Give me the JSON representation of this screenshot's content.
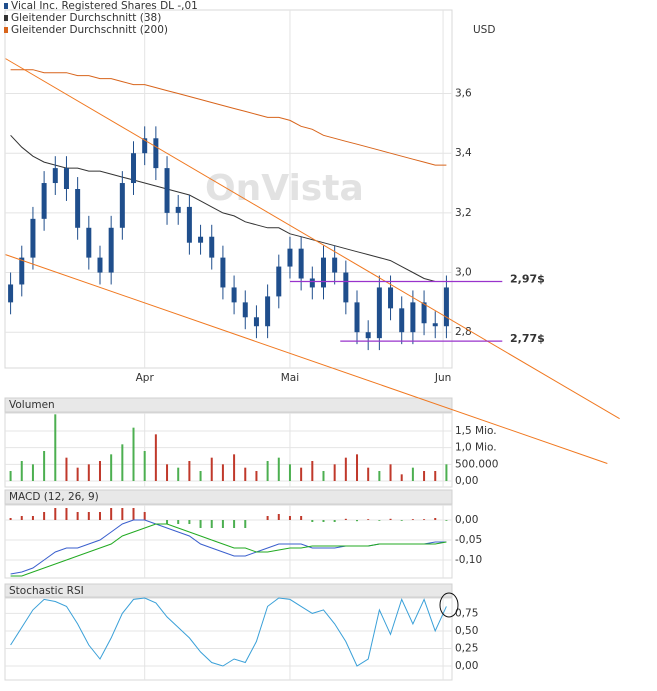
{
  "chart_data": [
    {
      "type": "candlestick",
      "currency": "USD",
      "watermark": "OnVista",
      "xlim": [
        -0.5,
        39.5
      ],
      "xticks": [
        {
          "value": 12,
          "label": "Apr"
        },
        {
          "value": 25,
          "label": "Mai"
        },
        {
          "value": 38.7,
          "label": "Jun"
        }
      ],
      "ylim": [
        2.68,
        3.88
      ],
      "yticks": [
        {
          "value": 2.8,
          "label": "2,8"
        },
        {
          "value": 3.0,
          "label": "3,0"
        },
        {
          "value": 3.2,
          "label": "3,2"
        },
        {
          "value": 3.4,
          "label": "3,4"
        },
        {
          "value": 3.6,
          "label": "3,6"
        }
      ],
      "grid": true,
      "series": [
        {
          "name": "Vical Inc. Registered Shares DL -,01",
          "color": "#1f4e8c",
          "open": [
            2.9,
            2.96,
            3.05,
            3.18,
            3.3,
            3.35,
            3.28,
            3.15,
            3.05,
            3.0,
            3.15,
            3.3,
            3.4,
            3.45,
            3.35,
            3.2,
            3.22,
            3.1,
            3.12,
            3.05,
            2.95,
            2.9,
            2.85,
            2.82,
            2.92,
            3.02,
            3.08,
            2.98,
            2.95,
            3.05,
            3.0,
            2.9,
            2.8,
            2.78,
            2.95,
            2.88,
            2.8,
            2.9,
            2.83,
            2.82
          ],
          "high": [
            3.0,
            3.09,
            3.22,
            3.34,
            3.39,
            3.39,
            3.32,
            3.19,
            3.09,
            3.19,
            3.34,
            3.44,
            3.49,
            3.49,
            3.39,
            3.26,
            3.26,
            3.16,
            3.16,
            3.09,
            2.99,
            2.94,
            2.89,
            2.96,
            3.06,
            3.12,
            3.12,
            3.02,
            3.09,
            3.09,
            3.04,
            2.94,
            2.84,
            2.99,
            2.99,
            2.92,
            2.94,
            2.94,
            2.87,
            2.99
          ],
          "low": [
            2.86,
            2.92,
            3.01,
            3.14,
            3.26,
            3.24,
            3.11,
            3.01,
            2.96,
            2.96,
            3.11,
            3.26,
            3.36,
            3.31,
            3.16,
            3.16,
            3.06,
            3.06,
            3.01,
            2.91,
            2.86,
            2.81,
            2.78,
            2.78,
            2.88,
            2.98,
            2.94,
            2.91,
            2.91,
            2.96,
            2.86,
            2.76,
            2.74,
            2.74,
            2.84,
            2.76,
            2.76,
            2.79,
            2.78,
            2.78
          ],
          "close": [
            2.96,
            3.05,
            3.18,
            3.3,
            3.35,
            3.28,
            3.15,
            3.05,
            3.0,
            3.15,
            3.3,
            3.4,
            3.45,
            3.35,
            3.2,
            3.22,
            3.1,
            3.12,
            3.05,
            2.95,
            2.9,
            2.85,
            2.82,
            2.92,
            3.02,
            3.08,
            2.98,
            2.95,
            3.05,
            3.0,
            2.9,
            2.8,
            2.78,
            2.95,
            2.88,
            2.8,
            2.9,
            2.83,
            2.82,
            2.95
          ]
        },
        {
          "name": "Gleitender Durchschnitt (38)",
          "color": "#333333",
          "values": [
            3.46,
            3.42,
            3.39,
            3.37,
            3.36,
            3.35,
            3.35,
            3.34,
            3.34,
            3.33,
            3.32,
            3.31,
            3.3,
            3.29,
            3.28,
            3.27,
            3.26,
            3.24,
            3.22,
            3.2,
            3.19,
            3.17,
            3.16,
            3.15,
            3.15,
            3.13,
            3.12,
            3.11,
            3.1,
            3.09,
            3.08,
            3.07,
            3.06,
            3.05,
            3.04,
            3.02,
            3.0,
            2.98,
            2.97,
            2.97
          ]
        },
        {
          "name": "Gleitender Durchschnitt (200)",
          "color": "#d8641b",
          "values": [
            3.68,
            3.68,
            3.68,
            3.67,
            3.67,
            3.67,
            3.66,
            3.66,
            3.65,
            3.65,
            3.64,
            3.63,
            3.63,
            3.62,
            3.61,
            3.6,
            3.59,
            3.58,
            3.57,
            3.56,
            3.55,
            3.54,
            3.53,
            3.52,
            3.52,
            3.51,
            3.49,
            3.48,
            3.46,
            3.45,
            3.44,
            3.43,
            3.42,
            3.41,
            3.4,
            3.39,
            3.38,
            3.37,
            3.36,
            3.36
          ]
        }
      ],
      "trendlines": [
        {
          "color": "#f07820",
          "x": [
            -0.45,
            54.5
          ],
          "y": [
            3.717,
            2.51
          ]
        },
        {
          "color": "#f07820",
          "x": [
            -0.45,
            53.4
          ],
          "y": [
            3.06,
            2.36
          ]
        }
      ],
      "levels": [
        {
          "value": 2.97,
          "label": "2,97$",
          "color": "#9933cc",
          "from": 25,
          "to": 44
        },
        {
          "value": 2.77,
          "label": "2,77$",
          "color": "#9933cc",
          "from": 29.5,
          "to": 44
        }
      ]
    },
    {
      "type": "bar",
      "title": "Volumen",
      "up_color": "#4caf50",
      "down_color": "#c0392b",
      "xlim": [
        -0.5,
        39.5
      ],
      "ylim": [
        -180000,
        2040000
      ],
      "yticks": [
        {
          "value": 0,
          "label": "0,00"
        },
        {
          "value": 500000,
          "label": "500.000"
        },
        {
          "value": 1000000,
          "label": "1,0 Mio."
        },
        {
          "value": 1500000,
          "label": "1,5 Mio."
        }
      ],
      "values": [
        300000,
        600000,
        500000,
        900000,
        2000000,
        700000,
        400000,
        500000,
        600000,
        800000,
        1100000,
        1600000,
        900000,
        1400000,
        500000,
        400000,
        600000,
        300000,
        700000,
        500000,
        800000,
        400000,
        300000,
        600000,
        700000,
        500000,
        400000,
        600000,
        300000,
        500000,
        700000,
        800000,
        400000,
        300000,
        500000,
        200000,
        400000,
        300000,
        300000,
        500000
      ]
    },
    {
      "type": "macd",
      "title": "MACD (12, 26, 9)",
      "up_color": "#4caf50",
      "down_color": "#c0392b",
      "xlim": [
        -0.5,
        39.5
      ],
      "ylim": [
        -0.145,
        0.0375
      ],
      "yticks": [
        {
          "value": -0.1,
          "label": "-0,10"
        },
        {
          "value": -0.05,
          "label": "-0,05"
        },
        {
          "value": 0,
          "label": "0,00"
        }
      ],
      "histogram": [
        0.005,
        0.01,
        0.01,
        0.02,
        0.03,
        0.03,
        0.02,
        0.02,
        0.02,
        0.03,
        0.03,
        0.03,
        0.02,
        0.0,
        -0.01,
        -0.01,
        -0.01,
        -0.02,
        -0.02,
        -0.02,
        -0.02,
        -0.02,
        0.0,
        0.01,
        0.015,
        0.01,
        0.01,
        -0.005,
        -0.005,
        -0.005,
        0.003,
        -0.003,
        0.002,
        -0.002,
        0.003,
        -0.002,
        0.002,
        0.002,
        0.005,
        -0.002
      ],
      "series": [
        {
          "color": "#3a5fcd",
          "values": [
            -0.135,
            -0.13,
            -0.12,
            -0.1,
            -0.08,
            -0.07,
            -0.07,
            -0.06,
            -0.05,
            -0.03,
            -0.01,
            0.0,
            0.0,
            -0.01,
            -0.02,
            -0.03,
            -0.04,
            -0.06,
            -0.07,
            -0.08,
            -0.09,
            -0.09,
            -0.08,
            -0.07,
            -0.06,
            -0.06,
            -0.06,
            -0.07,
            -0.07,
            -0.07,
            -0.065,
            -0.065,
            -0.065,
            -0.06,
            -0.06,
            -0.06,
            -0.06,
            -0.06,
            -0.055,
            -0.055
          ]
        },
        {
          "color": "#22aa22",
          "values": [
            -0.14,
            -0.14,
            -0.13,
            -0.12,
            -0.11,
            -0.1,
            -0.09,
            -0.08,
            -0.07,
            -0.06,
            -0.04,
            -0.03,
            -0.02,
            -0.01,
            -0.01,
            -0.02,
            -0.03,
            -0.04,
            -0.05,
            -0.06,
            -0.07,
            -0.07,
            -0.08,
            -0.08,
            -0.075,
            -0.07,
            -0.07,
            -0.065,
            -0.065,
            -0.065,
            -0.065,
            -0.065,
            -0.065,
            -0.06,
            -0.06,
            -0.06,
            -0.06,
            -0.06,
            -0.06,
            -0.055
          ]
        }
      ]
    },
    {
      "type": "line",
      "title": "Stochastic RSI",
      "xlim": [
        -0.5,
        39.5
      ],
      "ylim": [
        -0.2,
        0.97
      ],
      "yticks": [
        {
          "value": 0,
          "label": "0,00"
        },
        {
          "value": 0.25,
          "label": "0,25"
        },
        {
          "value": 0.5,
          "label": "0,50"
        },
        {
          "value": 0.75,
          "label": "0,75"
        }
      ],
      "series": [
        {
          "color": "#3aa0d8",
          "values": [
            0.3,
            0.55,
            0.8,
            0.95,
            0.92,
            0.85,
            0.6,
            0.3,
            0.1,
            0.4,
            0.75,
            0.95,
            0.97,
            0.9,
            0.7,
            0.55,
            0.4,
            0.2,
            0.05,
            0.0,
            0.1,
            0.05,
            0.35,
            0.85,
            0.97,
            0.95,
            0.85,
            0.75,
            0.8,
            0.6,
            0.35,
            0.0,
            0.1,
            0.8,
            0.45,
            0.95,
            0.6,
            0.95,
            0.5,
            0.85
          ]
        }
      ]
    }
  ]
}
